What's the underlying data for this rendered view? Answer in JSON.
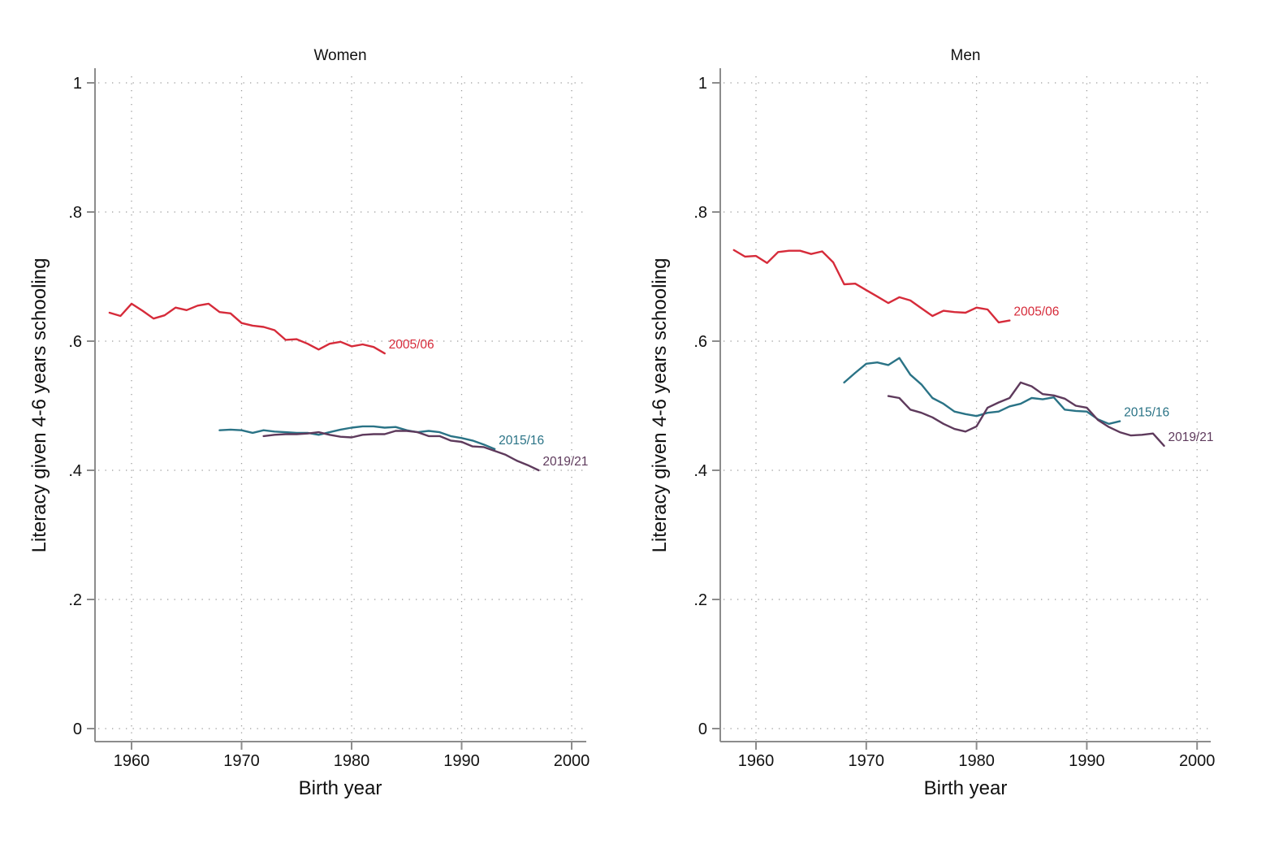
{
  "chart_data": [
    {
      "type": "line",
      "title": "Women",
      "xlabel": "Birth year",
      "ylabel": "Literacy given 4-6 years schooling",
      "xlim": [
        1957,
        2001
      ],
      "ylim": [
        0,
        1
      ],
      "xticks": [
        1960,
        1970,
        1980,
        1990,
        2000
      ],
      "xtick_labels": [
        "1960",
        "1970",
        "1980",
        "1990",
        "2000"
      ],
      "yticks": [
        0,
        0.2,
        0.4,
        0.6,
        0.8,
        1
      ],
      "ytick_labels": [
        "0",
        ".2",
        ".4",
        ".6",
        ".8",
        "1"
      ],
      "grid": true,
      "legend": "inline labels at line ends",
      "series": [
        {
          "name": "2005/06",
          "color": "#d62b3a",
          "x": [
            1958,
            1959,
            1960,
            1961,
            1962,
            1963,
            1964,
            1965,
            1966,
            1967,
            1968,
            1969,
            1970,
            1971,
            1972,
            1973,
            1974,
            1975,
            1976,
            1977,
            1978,
            1979,
            1980,
            1981,
            1982,
            1983
          ],
          "y": [
            0.644,
            0.639,
            0.658,
            0.647,
            0.635,
            0.64,
            0.652,
            0.648,
            0.655,
            0.658,
            0.645,
            0.643,
            0.628,
            0.624,
            0.622,
            0.617,
            0.602,
            0.603,
            0.596,
            0.587,
            0.596,
            0.599,
            0.592,
            0.595,
            0.591,
            0.581
          ]
        },
        {
          "name": "2015/16",
          "color": "#2a7386",
          "x": [
            1968,
            1969,
            1970,
            1971,
            1972,
            1973,
            1974,
            1975,
            1976,
            1977,
            1978,
            1979,
            1980,
            1981,
            1982,
            1983,
            1984,
            1985,
            1986,
            1987,
            1988,
            1989,
            1990,
            1991,
            1992,
            1993
          ],
          "y": [
            0.462,
            0.463,
            0.462,
            0.458,
            0.462,
            0.46,
            0.459,
            0.458,
            0.458,
            0.455,
            0.459,
            0.463,
            0.466,
            0.468,
            0.468,
            0.466,
            0.467,
            0.462,
            0.459,
            0.461,
            0.459,
            0.453,
            0.45,
            0.446,
            0.44,
            0.433
          ]
        },
        {
          "name": "2019/21",
          "color": "#5e3a5c",
          "x": [
            1972,
            1973,
            1974,
            1975,
            1976,
            1977,
            1978,
            1979,
            1980,
            1981,
            1982,
            1983,
            1984,
            1985,
            1986,
            1987,
            1988,
            1989,
            1990,
            1991,
            1992,
            1993,
            1994,
            1995,
            1996,
            1997
          ],
          "y": [
            0.453,
            0.455,
            0.456,
            0.456,
            0.457,
            0.459,
            0.455,
            0.452,
            0.451,
            0.455,
            0.456,
            0.456,
            0.461,
            0.461,
            0.459,
            0.453,
            0.453,
            0.446,
            0.444,
            0.437,
            0.436,
            0.43,
            0.424,
            0.415,
            0.408,
            0.4
          ]
        }
      ]
    },
    {
      "type": "line",
      "title": "Men",
      "xlabel": "Birth year",
      "ylabel": "Literacy given 4-6 years schooling",
      "xlim": [
        1957,
        2001
      ],
      "ylim": [
        0,
        1
      ],
      "xticks": [
        1960,
        1970,
        1980,
        1990,
        2000
      ],
      "xtick_labels": [
        "1960",
        "1970",
        "1980",
        "1990",
        "2000"
      ],
      "yticks": [
        0,
        0.2,
        0.4,
        0.6,
        0.8,
        1
      ],
      "ytick_labels": [
        "0",
        ".2",
        ".4",
        ".6",
        ".8",
        "1"
      ],
      "grid": true,
      "legend": "inline labels at line ends",
      "series": [
        {
          "name": "2005/06",
          "color": "#d62b3a",
          "x": [
            1958,
            1959,
            1960,
            1961,
            1962,
            1963,
            1964,
            1965,
            1966,
            1967,
            1968,
            1969,
            1970,
            1971,
            1972,
            1973,
            1974,
            1975,
            1976,
            1977,
            1978,
            1979,
            1980,
            1981,
            1982,
            1983
          ],
          "y": [
            0.741,
            0.731,
            0.732,
            0.721,
            0.738,
            0.74,
            0.74,
            0.735,
            0.739,
            0.722,
            0.688,
            0.689,
            0.679,
            0.669,
            0.659,
            0.668,
            0.663,
            0.651,
            0.639,
            0.647,
            0.645,
            0.644,
            0.652,
            0.649,
            0.629,
            0.632
          ]
        },
        {
          "name": "2015/16",
          "color": "#2a7386",
          "x": [
            1968,
            1969,
            1970,
            1971,
            1972,
            1973,
            1974,
            1975,
            1976,
            1977,
            1978,
            1979,
            1980,
            1981,
            1982,
            1983,
            1984,
            1985,
            1986,
            1987,
            1988,
            1989,
            1990,
            1991,
            1992,
            1993
          ],
          "y": [
            0.536,
            0.551,
            0.565,
            0.567,
            0.563,
            0.574,
            0.548,
            0.533,
            0.512,
            0.503,
            0.491,
            0.487,
            0.484,
            0.489,
            0.491,
            0.499,
            0.503,
            0.512,
            0.51,
            0.513,
            0.494,
            0.492,
            0.491,
            0.479,
            0.472,
            0.476
          ]
        },
        {
          "name": "2019/21",
          "color": "#5e3a5c",
          "x": [
            1972,
            1973,
            1974,
            1975,
            1976,
            1977,
            1978,
            1979,
            1980,
            1981,
            1982,
            1983,
            1984,
            1985,
            1986,
            1987,
            1988,
            1989,
            1990,
            1991,
            1992,
            1993,
            1994,
            1995,
            1996,
            1997
          ],
          "y": [
            0.515,
            0.512,
            0.494,
            0.489,
            0.482,
            0.472,
            0.464,
            0.46,
            0.468,
            0.497,
            0.505,
            0.512,
            0.536,
            0.53,
            0.518,
            0.516,
            0.511,
            0.5,
            0.497,
            0.478,
            0.467,
            0.459,
            0.454,
            0.455,
            0.457,
            0.438
          ]
        }
      ]
    }
  ]
}
